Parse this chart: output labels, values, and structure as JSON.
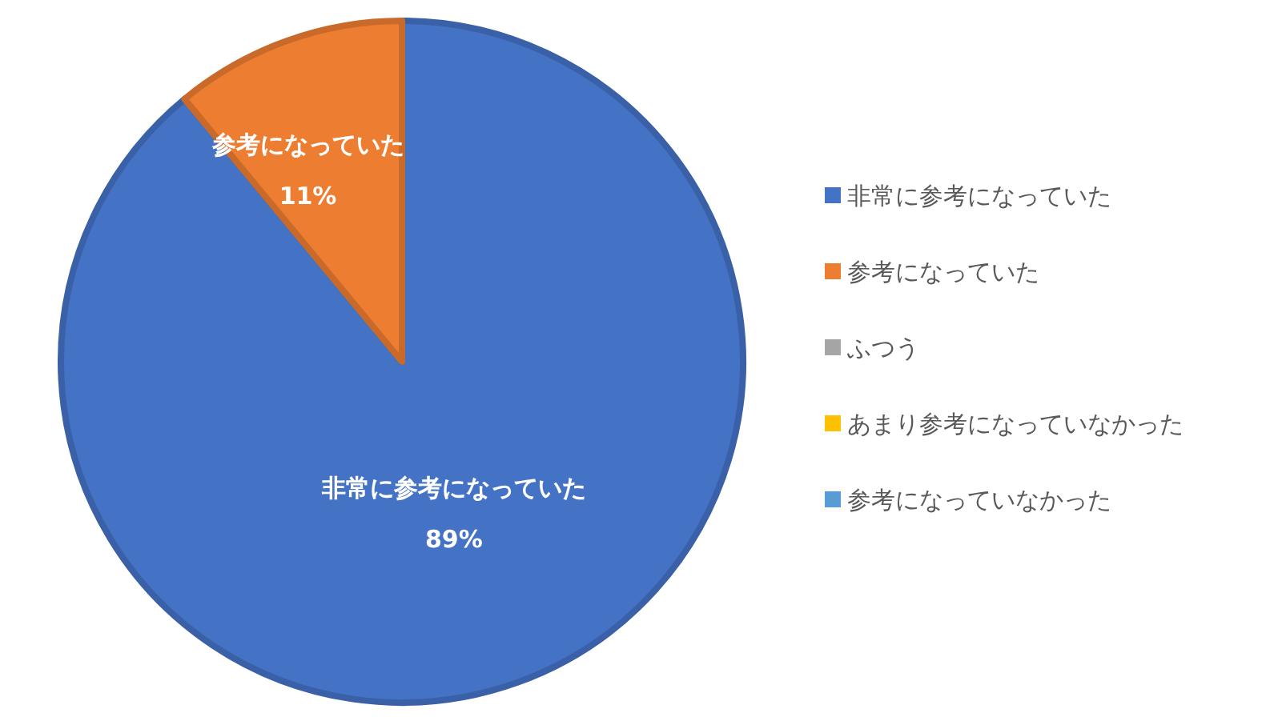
{
  "chart_data": {
    "type": "pie",
    "categories": [
      "非常に参考になっていた",
      "参考になっていた",
      "ふつう",
      "あまり参考になっていなかった",
      "参考になっていなかった"
    ],
    "values": [
      89,
      11,
      0,
      0,
      0
    ],
    "colors": [
      "#4472c4",
      "#ed7d31",
      "#a5a5a5",
      "#ffc000",
      "#5b9bd5"
    ],
    "value_labels": [
      "89%",
      "11%",
      null,
      null,
      null
    ],
    "legend": "right"
  }
}
